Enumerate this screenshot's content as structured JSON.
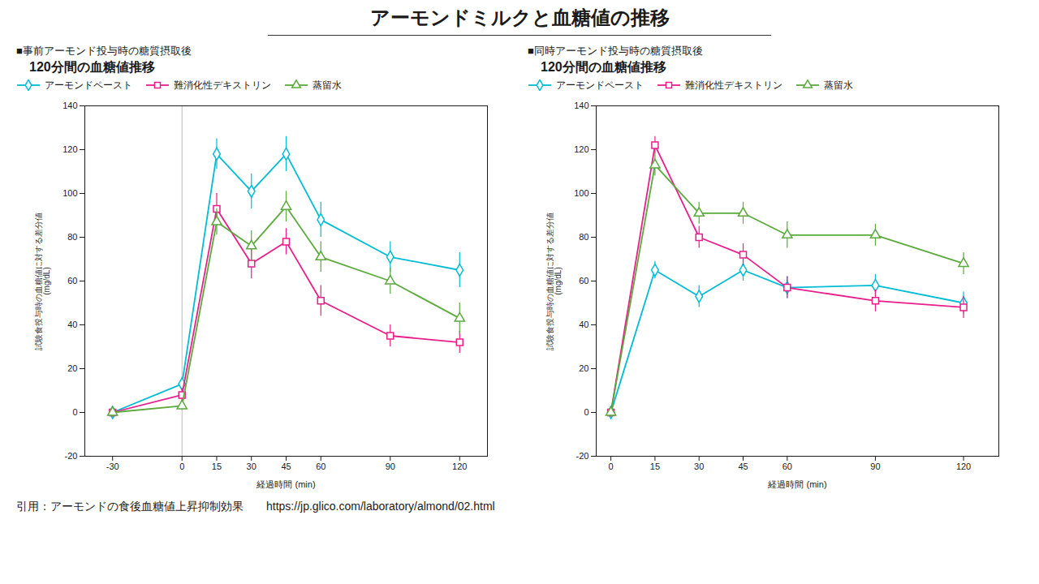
{
  "title": "アーモンドミルクと血糖値の推移",
  "caption": "引用：アーモンドの食後血糖値上昇抑制効果　　https://jp.glico.com/laboratory/almond/02.html",
  "chart_data": [
    {
      "type": "line",
      "subtitle": [
        "■事前アーモンド投与時の糖質摂取後",
        "　120分間の血糖値推移"
      ],
      "x_label": "経過時間 (min)",
      "y_label": [
        "試験食投与時の血糖値に対する差分値",
        "(mg/dL)"
      ],
      "x": [
        -30,
        0,
        15,
        30,
        45,
        60,
        90,
        120
      ],
      "xlim": [
        -42,
        132
      ],
      "xticks": [
        -30,
        0,
        15,
        30,
        45,
        60,
        90,
        120
      ],
      "ylim": [
        -20,
        140
      ],
      "yticks": [
        -20,
        0,
        20,
        40,
        60,
        80,
        100,
        120,
        140
      ],
      "vline": 0,
      "series": [
        {
          "name": "アーモンドペースト",
          "color": "#00bcd4",
          "marker": "diamond",
          "values": [
            0.0,
            13.0,
            118.0,
            101.0,
            118.0,
            88.0,
            71.0,
            65.0
          ],
          "errors": [
            2,
            3,
            7,
            8,
            8,
            8,
            7,
            8
          ]
        },
        {
          "name": "難消化性デキストリン",
          "color": "#e91e8c",
          "marker": "square",
          "values": [
            0.0,
            8.0,
            93.0,
            68.0,
            78.0,
            51.0,
            35.0,
            32.0
          ],
          "errors": [
            2,
            3,
            7,
            7,
            6,
            7,
            5,
            5
          ]
        },
        {
          "name": "蒸留水",
          "color": "#5aaa3c",
          "marker": "triangle",
          "values": [
            0.0,
            3.0,
            87.0,
            76.0,
            94.0,
            71.0,
            60.0,
            43.0
          ],
          "errors": [
            2,
            2,
            6,
            7,
            7,
            7,
            6,
            7
          ]
        }
      ]
    },
    {
      "type": "line",
      "subtitle": [
        "■同時アーモンド投与時の糖質摂取後",
        "　120分間の血糖値推移"
      ],
      "x_label": "経過時間 (min)",
      "y_label": [
        "試験食投与時の血糖値に対する差分値",
        "(mg/dL)"
      ],
      "x": [
        0,
        15,
        30,
        45,
        60,
        90,
        120
      ],
      "xlim": [
        -5,
        132
      ],
      "xticks": [
        0,
        15,
        30,
        45,
        60,
        90,
        120
      ],
      "ylim": [
        -20,
        140
      ],
      "yticks": [
        -20,
        0,
        20,
        40,
        60,
        80,
        100,
        120,
        140
      ],
      "series": [
        {
          "name": "アーモンドペースト",
          "color": "#00bcd4",
          "marker": "diamond",
          "values": [
            0.0,
            65.0,
            53.0,
            65.0,
            57.0,
            58.0,
            50.0
          ],
          "errors": [
            2,
            4,
            5,
            5,
            5,
            5,
            5
          ]
        },
        {
          "name": "難消化性デキストリン",
          "color": "#e91e8c",
          "marker": "square",
          "values": [
            0.0,
            122.0,
            80.0,
            72.0,
            57.0,
            51.0,
            48.0
          ],
          "errors": [
            2,
            4,
            5,
            5,
            5,
            5,
            5
          ]
        },
        {
          "name": "蒸留水",
          "color": "#5aaa3c",
          "marker": "triangle",
          "values": [
            0.0,
            113.0,
            91.0,
            91.0,
            81.0,
            81.0,
            68.0
          ],
          "errors": [
            2,
            5,
            5,
            5,
            6,
            5,
            5
          ]
        }
      ]
    }
  ]
}
